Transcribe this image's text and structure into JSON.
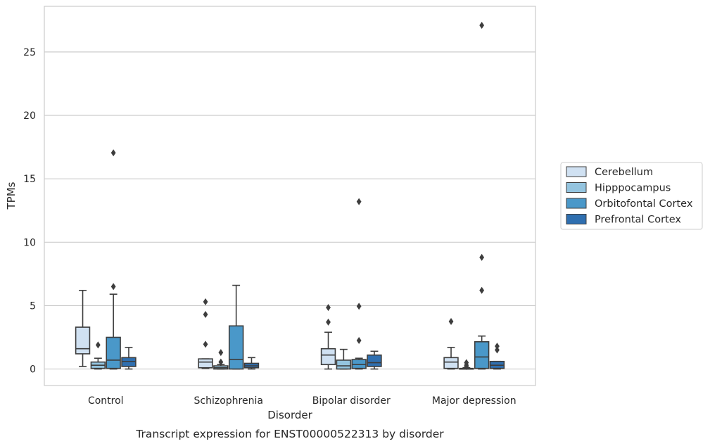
{
  "caption": "Transcript expression for ENST00000522313 by disorder",
  "chart_data": {
    "type": "box",
    "title": "",
    "xlabel": "Disorder",
    "ylabel": "TPMs",
    "ylim": [
      -1.3,
      28.6
    ],
    "yticks": [
      0,
      5,
      10,
      15,
      20,
      25
    ],
    "grid": "horizontal",
    "legend_position": "right",
    "categories": [
      "Control",
      "Schizophrenia",
      "Bipolar disorder",
      "Major depression"
    ],
    "series": [
      {
        "name": "Cerebellum",
        "color": "#d0e1f2",
        "boxes": [
          {
            "whisker_low": 0.2,
            "q1": 1.2,
            "median": 1.6,
            "q3": 3.3,
            "whisker_high": 6.2,
            "outliers": []
          },
          {
            "whisker_low": 0.05,
            "q1": 0.1,
            "median": 0.55,
            "q3": 0.8,
            "whisker_high": 0.8,
            "outliers": [
              1.95,
              4.3,
              5.3
            ]
          },
          {
            "whisker_low": 0.0,
            "q1": 0.35,
            "median": 1.1,
            "q3": 1.6,
            "whisker_high": 2.9,
            "outliers": [
              3.7,
              4.85
            ]
          },
          {
            "whisker_low": 0.0,
            "q1": 0.05,
            "median": 0.55,
            "q3": 0.9,
            "whisker_high": 1.7,
            "outliers": [
              3.75
            ]
          }
        ]
      },
      {
        "name": "Hipppocampus",
        "color": "#94c4df",
        "boxes": [
          {
            "whisker_low": 0.0,
            "q1": 0.05,
            "median": 0.3,
            "q3": 0.55,
            "whisker_high": 0.85,
            "outliers": [
              1.9
            ]
          },
          {
            "whisker_low": 0.0,
            "q1": 0.0,
            "median": 0.1,
            "q3": 0.25,
            "whisker_high": 0.35,
            "outliers": [
              0.55,
              1.3
            ]
          },
          {
            "whisker_low": 0.0,
            "q1": 0.0,
            "median": 0.25,
            "q3": 0.7,
            "whisker_high": 1.55,
            "outliers": []
          },
          {
            "whisker_low": 0.0,
            "q1": 0.0,
            "median": 0.0,
            "q3": 0.05,
            "whisker_high": 0.1,
            "outliers": [
              0.2,
              0.3,
              0.5
            ]
          }
        ]
      },
      {
        "name": "Orbitofontal Cortex",
        "color": "#4a98c9",
        "boxes": [
          {
            "whisker_low": 0.0,
            "q1": 0.05,
            "median": 0.7,
            "q3": 2.5,
            "whisker_high": 5.9,
            "outliers": [
              6.5,
              17.05
            ]
          },
          {
            "whisker_low": 0.0,
            "q1": 0.0,
            "median": 0.75,
            "q3": 3.4,
            "whisker_high": 6.6,
            "outliers": []
          },
          {
            "whisker_low": 0.0,
            "q1": 0.05,
            "median": 0.35,
            "q3": 0.75,
            "whisker_high": 0.85,
            "outliers": [
              2.25,
              4.95,
              13.2
            ]
          },
          {
            "whisker_low": 0.0,
            "q1": 0.05,
            "median": 0.95,
            "q3": 2.15,
            "whisker_high": 2.6,
            "outliers": [
              6.2,
              8.8,
              27.1
            ]
          }
        ]
      },
      {
        "name": "Prefrontal Cortex",
        "color": "#2f6fb0",
        "boxes": [
          {
            "whisker_low": 0.0,
            "q1": 0.2,
            "median": 0.6,
            "q3": 0.9,
            "whisker_high": 1.7,
            "outliers": []
          },
          {
            "whisker_low": 0.0,
            "q1": 0.1,
            "median": 0.25,
            "q3": 0.45,
            "whisker_high": 0.9,
            "outliers": []
          },
          {
            "whisker_low": 0.0,
            "q1": 0.2,
            "median": 0.5,
            "q3": 1.1,
            "whisker_high": 1.4,
            "outliers": []
          },
          {
            "whisker_low": 0.0,
            "q1": 0.05,
            "median": 0.3,
            "q3": 0.6,
            "whisker_high": 0.6,
            "outliers": [
              1.5,
              1.8
            ]
          }
        ]
      }
    ]
  }
}
